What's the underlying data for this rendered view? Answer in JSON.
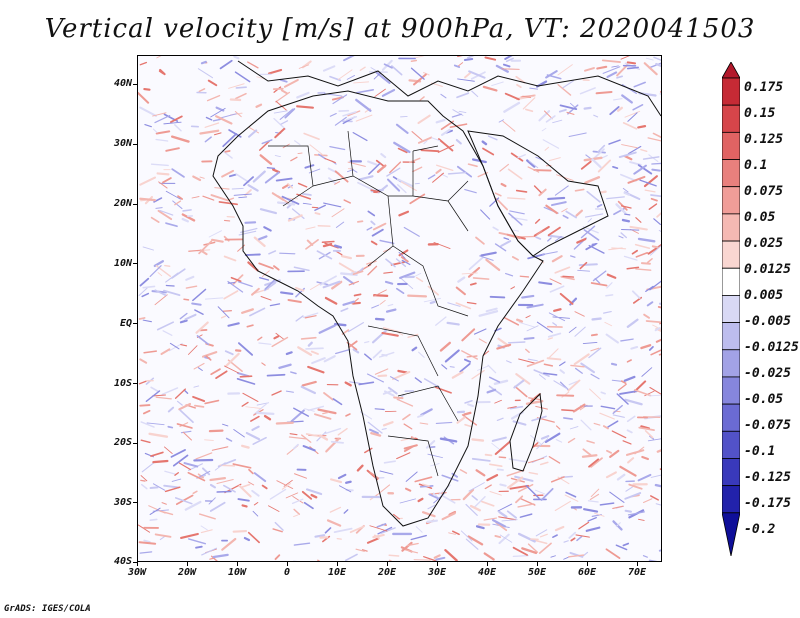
{
  "title": "Vertical velocity [m/s] at 900hPa, VT: 2020041503",
  "map": {
    "lon_range": [
      -30,
      75
    ],
    "lat_range": [
      -40,
      45
    ],
    "lat_labels": [
      "40N",
      "30N",
      "20N",
      "10N",
      "EQ",
      "10S",
      "20S",
      "30S",
      "40S"
    ],
    "lon_labels": [
      "30W",
      "20W",
      "10W",
      "0",
      "10E",
      "20E",
      "30E",
      "40E",
      "50E",
      "60E",
      "70E"
    ]
  },
  "colorbar": {
    "labels": [
      "0.175",
      "0.15",
      "0.125",
      "0.1",
      "0.075",
      "0.05",
      "0.025",
      "0.0125",
      "0.005",
      "-0.005",
      "-0.0125",
      "-0.025",
      "-0.05",
      "-0.075",
      "-0.1",
      "-0.125",
      "-0.175",
      "-0.2"
    ],
    "colors": [
      "#b2182b",
      "#c62a35",
      "#d6454a",
      "#e06363",
      "#e8807d",
      "#f09d98",
      "#f5b9b3",
      "#f9d6d1",
      "#ffffff",
      "#d9d9f5",
      "#bdbdee",
      "#a2a2e6",
      "#8686dd",
      "#6b6bd3",
      "#5252c8",
      "#3939bb",
      "#2222ab",
      "#0f0f99"
    ]
  },
  "credit": "GrADS: IGES/COLA"
}
